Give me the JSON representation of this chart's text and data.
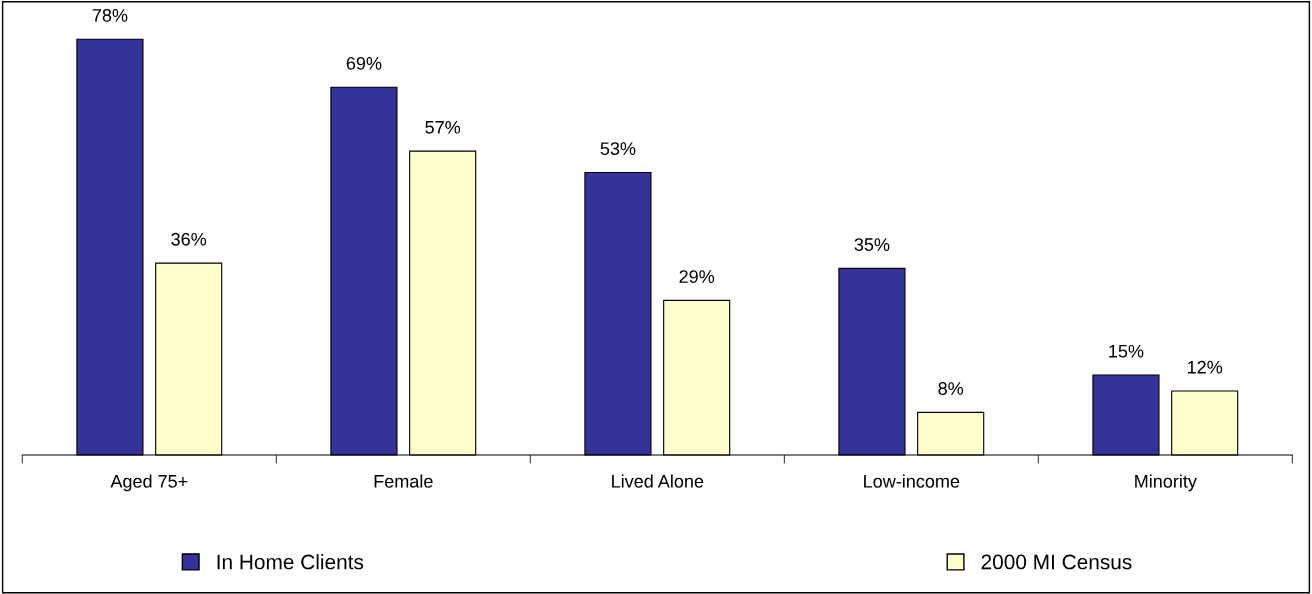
{
  "chart_data": {
    "type": "bar",
    "categories": [
      "Aged 75+",
      "Female",
      "Lived Alone",
      "Low-income",
      "Minority"
    ],
    "series": [
      {
        "name": "In Home Clients",
        "color": "#333399",
        "values": [
          78,
          69,
          53,
          35,
          15
        ],
        "value_labels": [
          "78%",
          "69%",
          "53%",
          "35%",
          "15%"
        ]
      },
      {
        "name": "2000 MI Census",
        "color": "#ffffcc",
        "values": [
          36,
          57,
          29,
          8,
          12
        ],
        "value_labels": [
          "36%",
          "57%",
          "29%",
          "8%",
          "12%"
        ]
      }
    ],
    "legend": "bottom",
    "grid": false,
    "tick_labels": "x"
  }
}
